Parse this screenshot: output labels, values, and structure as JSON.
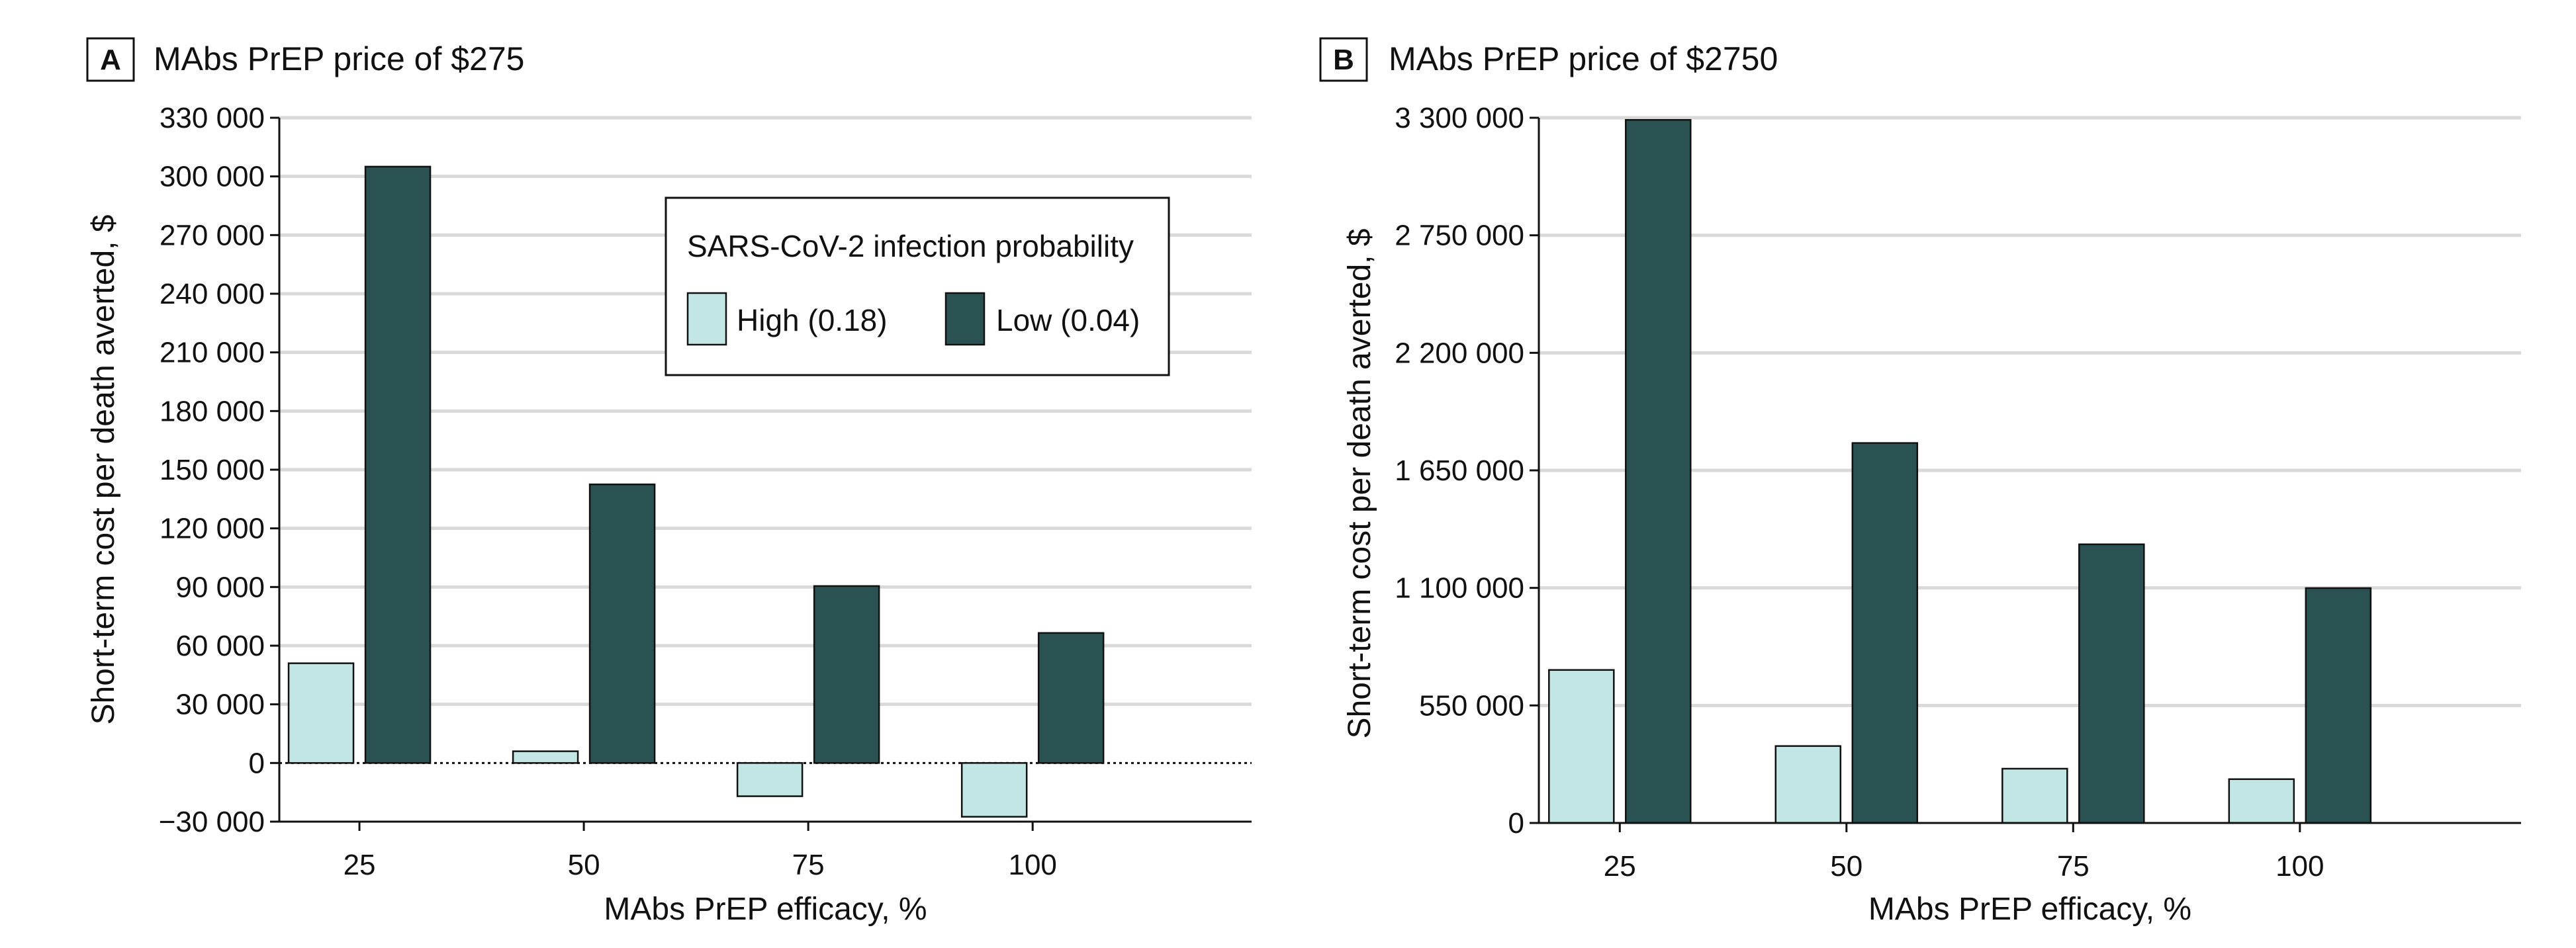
{
  "colors": {
    "high": "#c2e6e4",
    "low": "#2a5252",
    "grid": "#d9d9d9",
    "outline": "#111111"
  },
  "legend": {
    "title": "SARS-CoV-2 infection probability",
    "items": [
      "High (0.18)",
      "Low (0.04)"
    ]
  },
  "chart_data": [
    {
      "type": "bar",
      "panel": "A",
      "title": "MAbs PrEP price of $275",
      "xlabel": "MAbs PrEP efficacy, %",
      "ylabel": "Short-term cost per death averted, $",
      "categories": [
        "25",
        "50",
        "75",
        "100"
      ],
      "ylim": [
        -30000,
        330000
      ],
      "yticks": [
        -30000,
        0,
        30000,
        60000,
        90000,
        120000,
        150000,
        180000,
        210000,
        240000,
        270000,
        300000,
        330000
      ],
      "ytick_labels": [
        "−30 000",
        "0",
        "30 000",
        "60 000",
        "90 000",
        "120 000",
        "150 000",
        "180 000",
        "210 000",
        "240 000",
        "270 000",
        "300 000",
        "330 000"
      ],
      "grid": true,
      "legend_position": "top-right",
      "series": [
        {
          "name": "High (0.18)",
          "values": [
            51000,
            6000,
            -17000,
            -27500
          ]
        },
        {
          "name": "Low (0.04)",
          "values": [
            305000,
            142500,
            90500,
            66500
          ]
        }
      ]
    },
    {
      "type": "bar",
      "panel": "B",
      "title": "MAbs PrEP price of $2750",
      "xlabel": "MAbs PrEP efficacy, %",
      "ylabel": "Short-term cost per death averted, $",
      "categories": [
        "25",
        "50",
        "75",
        "100"
      ],
      "ylim": [
        0,
        3300000
      ],
      "yticks": [
        0,
        550000,
        1100000,
        1650000,
        2200000,
        2750000,
        3300000
      ],
      "ytick_labels": [
        "0",
        "550 000",
        "1 100 000",
        "1 650 000",
        "2 200 000",
        "2 750 000",
        "3 300 000"
      ],
      "grid": true,
      "series": [
        {
          "name": "High (0.18)",
          "values": [
            716000,
            360000,
            254000,
            205000
          ]
        },
        {
          "name": "Low (0.04)",
          "values": [
            3290000,
            1778000,
            1304000,
            1099000
          ]
        }
      ]
    }
  ]
}
